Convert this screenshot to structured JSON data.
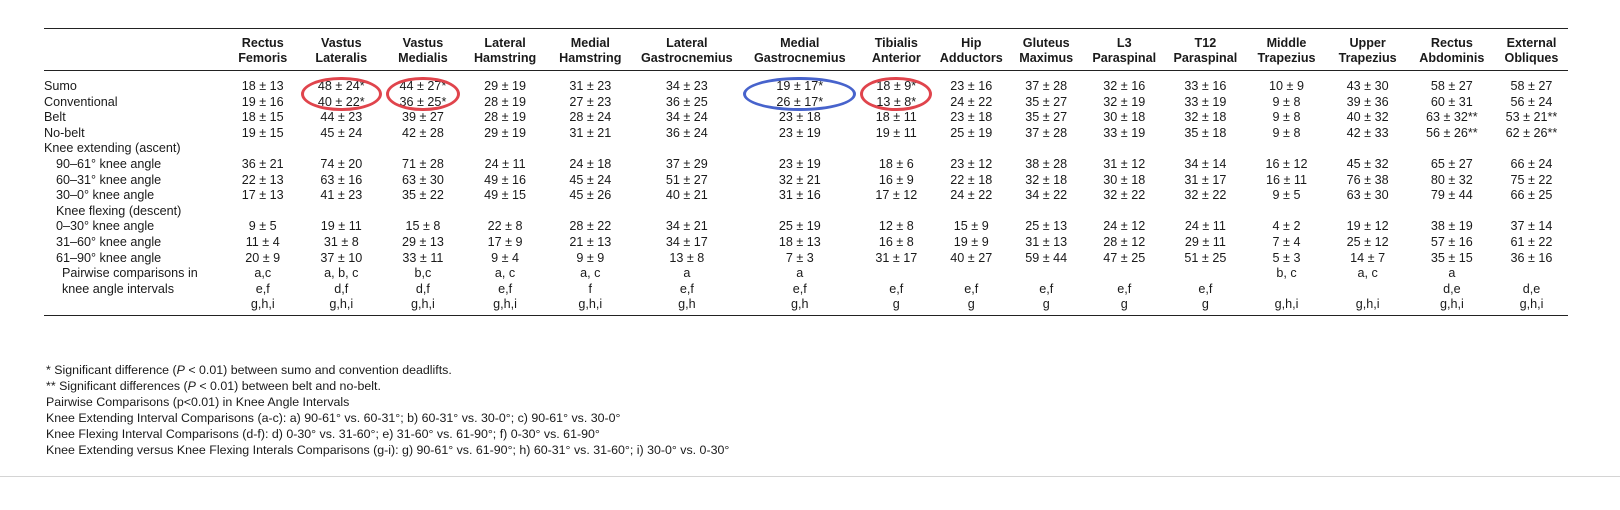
{
  "colors": {
    "red_highlight": "#e0444c",
    "blue_highlight": "#4763cc"
  },
  "headers": [
    [
      "",
      ""
    ],
    [
      "Rectus",
      "Femoris"
    ],
    [
      "Vastus",
      "Lateralis"
    ],
    [
      "Vastus",
      "Medialis"
    ],
    [
      "Lateral",
      "Hamstring"
    ],
    [
      "Medial",
      "Hamstring"
    ],
    [
      "Lateral",
      "Gastrocnemius"
    ],
    [
      "Medial",
      "Gastrocnemius"
    ],
    [
      "Tibialis",
      "Anterior"
    ],
    [
      "Hip",
      "Adductors"
    ],
    [
      "Gluteus",
      "Maximus"
    ],
    [
      "L3",
      "Paraspinal"
    ],
    [
      "T12",
      "Paraspinal"
    ],
    [
      "Middle",
      "Trapezius"
    ],
    [
      "Upper",
      "Trapezius"
    ],
    [
      "Rectus",
      "Abdominis"
    ],
    [
      "External",
      "Obliques"
    ]
  ],
  "rows": [
    {
      "label": "Sumo",
      "indent": 0,
      "cells": [
        "18 ± 13",
        "48 ± 24*",
        "44 ± 27*",
        "29 ± 19",
        "31 ± 23",
        "34 ± 23",
        "19 ± 17*",
        "18 ± 9*",
        "23 ± 16",
        "37 ± 28",
        "32 ± 16",
        "33 ± 16",
        "10 ± 9",
        "43 ± 30",
        "58 ± 27",
        "58 ± 27"
      ]
    },
    {
      "label": "Conventional",
      "indent": 0,
      "cells": [
        "19 ± 16",
        "40 ± 22*",
        "36 ± 25*",
        "28 ± 19",
        "27 ± 23",
        "36 ± 25",
        "26 ± 17*",
        "13 ± 8*",
        "24 ± 22",
        "35 ± 27",
        "32 ± 19",
        "33 ± 19",
        "9 ± 8",
        "39 ± 36",
        "60 ± 31",
        "56 ± 24"
      ]
    },
    {
      "label": "Belt",
      "indent": 0,
      "cells": [
        "18 ± 15",
        "44 ± 23",
        "39 ± 27",
        "28 ± 19",
        "28 ± 24",
        "34 ± 24",
        "23 ± 18",
        "18 ± 11",
        "23 ± 18",
        "35 ± 27",
        "30 ± 18",
        "32 ± 18",
        "9 ± 8",
        "40 ± 32",
        "63 ± 32**",
        "53 ± 21**"
      ]
    },
    {
      "label": "No-belt",
      "indent": 0,
      "cells": [
        "19 ± 15",
        "45 ± 24",
        "42 ± 28",
        "29 ± 19",
        "31 ± 21",
        "36 ± 24",
        "23 ± 19",
        "19 ± 11",
        "25 ± 19",
        "37 ± 28",
        "33 ± 19",
        "35 ± 18",
        "9 ± 8",
        "42 ± 33",
        "56 ± 26**",
        "62 ± 26**"
      ]
    },
    {
      "label": "Knee extending (ascent)",
      "indent": 0,
      "cells": [
        "",
        "",
        "",
        "",
        "",
        "",
        "",
        "",
        "",
        "",
        "",
        "",
        "",
        "",
        "",
        ""
      ]
    },
    {
      "label": "90–61° knee angle",
      "indent": 1,
      "cells": [
        "36 ± 21",
        "74 ± 20",
        "71 ± 28",
        "24 ± 11",
        "24 ± 18",
        "37 ± 29",
        "23 ± 19",
        "18 ± 6",
        "23 ± 12",
        "38 ± 28",
        "31 ± 12",
        "34 ± 14",
        "16 ± 12",
        "45 ± 32",
        "65 ± 27",
        "66 ± 24"
      ]
    },
    {
      "label": "60–31° knee angle",
      "indent": 1,
      "cells": [
        "22 ± 13",
        "63 ± 16",
        "63 ± 30",
        "49 ± 16",
        "45 ± 24",
        "51 ± 27",
        "32 ± 21",
        "16 ± 9",
        "22 ± 18",
        "32 ± 18",
        "30 ± 18",
        "31 ± 17",
        "16 ± 11",
        "76 ± 38",
        "80 ± 32",
        "75 ± 22"
      ]
    },
    {
      "label": "30–0° knee angle",
      "indent": 1,
      "cells": [
        "17 ± 13",
        "41 ± 23",
        "35 ± 22",
        "49 ± 15",
        "45 ± 26",
        "40 ± 21",
        "31 ± 16",
        "17 ± 12",
        "24 ± 22",
        "34 ± 22",
        "32 ± 22",
        "32 ± 22",
        "9 ± 5",
        "63 ± 30",
        "79 ± 44",
        "66 ± 25"
      ]
    },
    {
      "label": "Knee flexing (descent)",
      "indent": 1,
      "cells": [
        "",
        "",
        "",
        "",
        "",
        "",
        "",
        "",
        "",
        "",
        "",
        "",
        "",
        "",
        "",
        ""
      ]
    },
    {
      "label": "0–30° knee angle",
      "indent": 1,
      "cells": [
        "9 ± 5",
        "19 ± 11",
        "15 ± 8",
        "22 ± 8",
        "28 ± 22",
        "34 ± 21",
        "25 ± 19",
        "12 ± 8",
        "15 ± 9",
        "25 ± 13",
        "24 ± 12",
        "24 ± 11",
        "4 ± 2",
        "19 ± 12",
        "38 ± 19",
        "37 ± 14"
      ]
    },
    {
      "label": "31–60° knee angle",
      "indent": 1,
      "cells": [
        "11 ± 4",
        "31 ± 8",
        "29 ± 13",
        "17 ± 9",
        "21 ± 13",
        "34 ± 17",
        "18 ± 13",
        "16 ± 8",
        "19 ± 9",
        "31 ± 13",
        "28 ± 12",
        "29 ± 11",
        "7 ± 4",
        "25 ± 12",
        "57 ± 16",
        "61 ± 22"
      ]
    },
    {
      "label": "61–90° knee angle",
      "indent": 1,
      "cells": [
        "20 ± 9",
        "37 ± 10",
        "33 ± 11",
        "9 ± 4",
        "9 ± 9",
        "13 ± 8",
        "7 ± 3",
        "31 ± 17",
        "40 ± 27",
        "59 ± 44",
        "47 ± 25",
        "51 ± 25",
        "5 ± 3",
        "14 ± 7",
        "35 ± 15",
        "36 ± 16"
      ]
    },
    {
      "label": "Pairwise comparisons in",
      "indent": 2,
      "cells": [
        "a,c",
        "a, b, c",
        "b,c",
        "a, c",
        "a, c",
        "a",
        "a",
        "",
        "",
        "",
        "",
        "",
        "b, c",
        "a, c",
        "a",
        ""
      ]
    },
    {
      "label": "knee angle intervals",
      "indent": 2,
      "cells": [
        "e,f",
        "d,f",
        "d,f",
        "e,f",
        "f",
        "e,f",
        "e,f",
        "e,f",
        "e,f",
        "e,f",
        "e,f",
        "e,f",
        "",
        "",
        "d,e",
        "d,e"
      ]
    },
    {
      "label": "",
      "indent": 2,
      "cells": [
        "g,h,i",
        "g,h,i",
        "g,h,i",
        "g,h,i",
        "g,h,i",
        "g,h",
        "g,h",
        "g",
        "g",
        "g",
        "g",
        "g",
        "g,h,i",
        "g,h,i",
        "g,h,i",
        "g,h,i"
      ]
    }
  ],
  "footnotes": [
    {
      "pre": "* Significant difference (",
      "italic": "P",
      "post": " < 0.01) between sumo and convention deadlifts."
    },
    {
      "pre": "** Significant differences (",
      "italic": "P",
      "post": " < 0.01) between belt and no-belt."
    },
    {
      "pre": "Pairwise Comparisons (p<0.01) in Knee Angle Intervals",
      "italic": "",
      "post": ""
    },
    {
      "pre": "Knee Extending Interval Comparisons (a-c): a) 90-61° vs. 60-31°; b) 60-31° vs. 30-0°; c) 90-61° vs. 30-0°",
      "italic": "",
      "post": ""
    },
    {
      "pre": "Knee Flexing Interval Comparisons (d-f): d) 0-30° vs. 31-60°; e) 31-60° vs. 61-90°; f) 0-30° vs. 61-90°",
      "italic": "",
      "post": ""
    },
    {
      "pre": "Knee Extending versus Knee Flexing Interals Comparisons (g-i): g) 90-61° vs. 61-90°; h) 60-31° vs. 31-60°; i) 30-0° vs. 0-30°",
      "italic": "",
      "post": ""
    }
  ],
  "highlights": [
    {
      "column": 2,
      "color": "red"
    },
    {
      "column": 3,
      "color": "red"
    },
    {
      "column": 7,
      "color": "blue"
    },
    {
      "column": 8,
      "color": "red"
    }
  ]
}
